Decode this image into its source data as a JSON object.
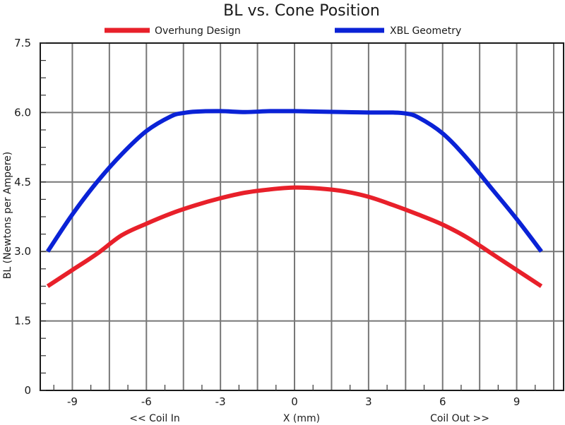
{
  "chart_data": {
    "type": "line",
    "title": "BL vs. Cone Position",
    "xlabel": "X (mm)",
    "ylabel": "BL (Newtons per Ampere)",
    "x_sub_labels": {
      "left": "<< Coil In",
      "right": "Coil Out >>"
    },
    "xlim": [
      -10.3,
      10.9
    ],
    "ylim": [
      0,
      7.5
    ],
    "x_ticks": [
      -9,
      -6,
      -3,
      0,
      3,
      6,
      9
    ],
    "x_tick_labels": [
      "-9",
      "-6",
      "-3",
      "0",
      "3",
      "6",
      "9"
    ],
    "y_ticks": [
      0,
      1.5,
      3.0,
      4.5,
      6.0,
      7.5
    ],
    "y_tick_labels": [
      "0",
      "1.5",
      "3.0",
      "4.5",
      "6.0",
      "7.5"
    ],
    "grid": true,
    "legend_position": "top",
    "series": [
      {
        "name": "Overhung Design",
        "color": "#e8202a",
        "x": [
          -10,
          -9,
          -8,
          -7,
          -6,
          -5,
          -4,
          -3,
          -2,
          -1,
          0,
          1,
          2,
          3,
          4,
          5,
          6,
          7,
          8,
          9,
          10
        ],
        "y": [
          2.25,
          2.6,
          2.95,
          3.35,
          3.6,
          3.82,
          4.0,
          4.15,
          4.27,
          4.34,
          4.38,
          4.36,
          4.3,
          4.18,
          4.0,
          3.8,
          3.58,
          3.3,
          2.95,
          2.6,
          2.25
        ]
      },
      {
        "name": "XBL Geometry",
        "color": "#0a22d6",
        "x": [
          -10,
          -9,
          -8,
          -7,
          -6,
          -5,
          -4.5,
          -4,
          -3,
          -2,
          -1,
          0,
          1,
          2,
          3,
          4,
          4.5,
          5,
          6,
          7,
          8,
          9,
          10
        ],
        "y": [
          3.0,
          3.8,
          4.5,
          5.1,
          5.6,
          5.92,
          5.99,
          6.02,
          6.03,
          6.01,
          6.03,
          6.03,
          6.02,
          6.01,
          6.0,
          6.0,
          5.98,
          5.9,
          5.55,
          5.0,
          4.35,
          3.7,
          3.0
        ]
      }
    ]
  }
}
